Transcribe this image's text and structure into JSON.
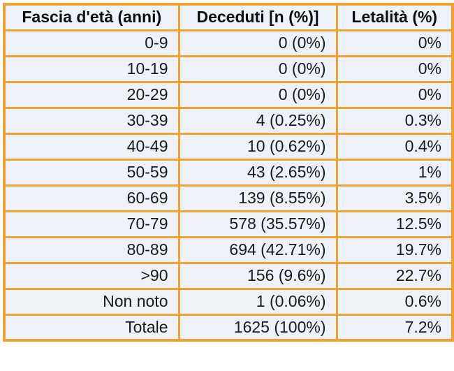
{
  "colors": {
    "border": "#F0A232",
    "cell_background": "#EDF2FA",
    "header_text": "#0d0d0d",
    "body_text": "#1a1a1a",
    "page_background": "#ffffff"
  },
  "chart_data": {
    "type": "table",
    "columns": [
      "Fascia d'età (anni)",
      "Deceduti [n (%)]",
      "Letalità (%)"
    ],
    "categories": [
      "0-9",
      "10-19",
      "20-29",
      "30-39",
      "40-49",
      "50-59",
      "60-69",
      "70-79",
      "80-89",
      ">90",
      "Non noto",
      "Totale"
    ],
    "deceduti_n": [
      0,
      0,
      0,
      4,
      10,
      43,
      139,
      578,
      694,
      156,
      1,
      1625
    ],
    "deceduti_pct": [
      0,
      0,
      0,
      0.25,
      0.62,
      2.65,
      8.55,
      35.57,
      42.71,
      9.6,
      0.06,
      100
    ],
    "letalita_pct": [
      0,
      0,
      0,
      0.3,
      0.4,
      1,
      3.5,
      12.5,
      19.7,
      22.7,
      0.6,
      7.2
    ],
    "rows": [
      [
        "0-9",
        "0 (0%)",
        "0%"
      ],
      [
        "10-19",
        "0 (0%)",
        "0%"
      ],
      [
        "20-29",
        "0 (0%)",
        "0%"
      ],
      [
        "30-39",
        "4 (0.25%)",
        "0.3%"
      ],
      [
        "40-49",
        "10 (0.62%)",
        "0.4%"
      ],
      [
        "50-59",
        "43 (2.65%)",
        "1%"
      ],
      [
        "60-69",
        "139 (8.55%)",
        "3.5%"
      ],
      [
        "70-79",
        "578 (35.57%)",
        "12.5%"
      ],
      [
        "80-89",
        "694 (42.71%)",
        "19.7%"
      ],
      [
        ">90",
        "156 (9.6%)",
        "22.7%"
      ],
      [
        "Non noto",
        "1 (0.06%)",
        "0.6%"
      ],
      [
        "Totale",
        "1625 (100%)",
        "7.2%"
      ]
    ]
  }
}
